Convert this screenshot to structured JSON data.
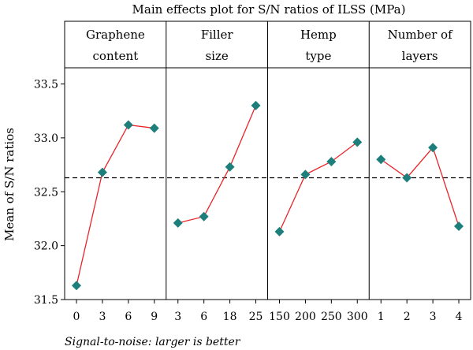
{
  "chart_data": {
    "type": "line",
    "title": "Main effects plot for S/N ratios of ILSS (MPa)",
    "ylabel": "Mean of S/N ratios",
    "ylim": [
      31.5,
      33.65
    ],
    "yticks": [
      "31.5",
      "32.0",
      "32.5",
      "33.0",
      "33.5"
    ],
    "reference_line": 32.63,
    "footnote": "Signal-to-noise: larger is better",
    "colors": {
      "line": "#e8262a",
      "marker": "#1d7f7c"
    },
    "panels": [
      {
        "title_lines": [
          "Graphene",
          "content"
        ],
        "categories": [
          "0",
          "3",
          "6",
          "9"
        ],
        "values": [
          31.63,
          32.68,
          33.12,
          33.09
        ]
      },
      {
        "title_lines": [
          "Filler",
          "size"
        ],
        "categories": [
          "3",
          "6",
          "18",
          "25"
        ],
        "values": [
          32.21,
          32.27,
          32.73,
          33.3
        ]
      },
      {
        "title_lines": [
          "Hemp",
          "type"
        ],
        "categories": [
          "150",
          "200",
          "250",
          "300"
        ],
        "values": [
          32.13,
          32.66,
          32.78,
          32.96
        ]
      },
      {
        "title_lines": [
          "Number of",
          "layers"
        ],
        "categories": [
          "1",
          "2",
          "3",
          "4"
        ],
        "values": [
          32.8,
          32.63,
          32.91,
          32.18
        ]
      }
    ]
  }
}
